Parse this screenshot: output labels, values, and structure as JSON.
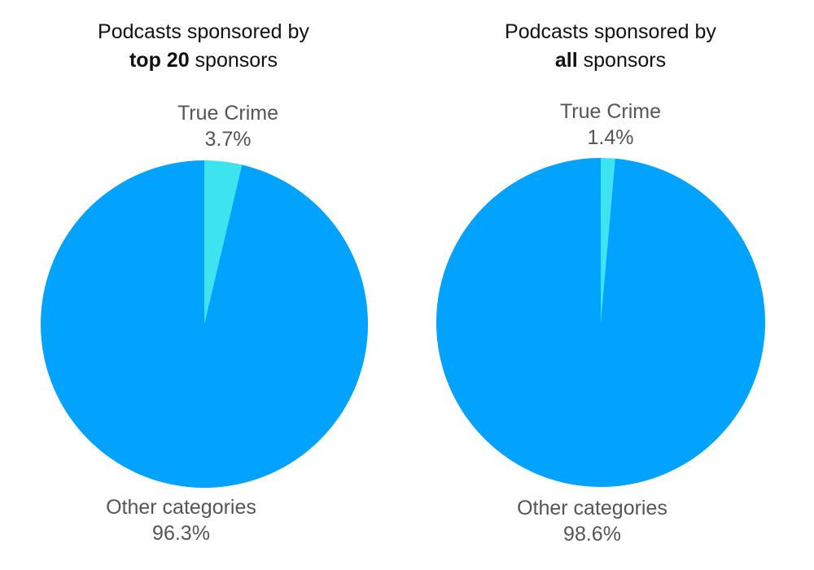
{
  "colors": {
    "true_crime": "#3de3ee",
    "other": "#02a3fe"
  },
  "chart_data": [
    {
      "type": "pie",
      "title": {
        "line1": "Podcasts sponsored by",
        "bold": "top 20",
        "rest": " sponsors"
      },
      "slices": [
        {
          "label": "True Crime",
          "value": 3.7,
          "value_label": "3.7%"
        },
        {
          "label": "Other categories",
          "value": 96.3,
          "value_label": "96.3%"
        }
      ]
    },
    {
      "type": "pie",
      "title": {
        "line1": "Podcasts sponsored by",
        "bold": "all",
        "rest": " sponsors"
      },
      "slices": [
        {
          "label": "True Crime",
          "value": 1.4,
          "value_label": "1.4%"
        },
        {
          "label": "Other categories",
          "value": 98.6,
          "value_label": "98.6%"
        }
      ]
    }
  ]
}
